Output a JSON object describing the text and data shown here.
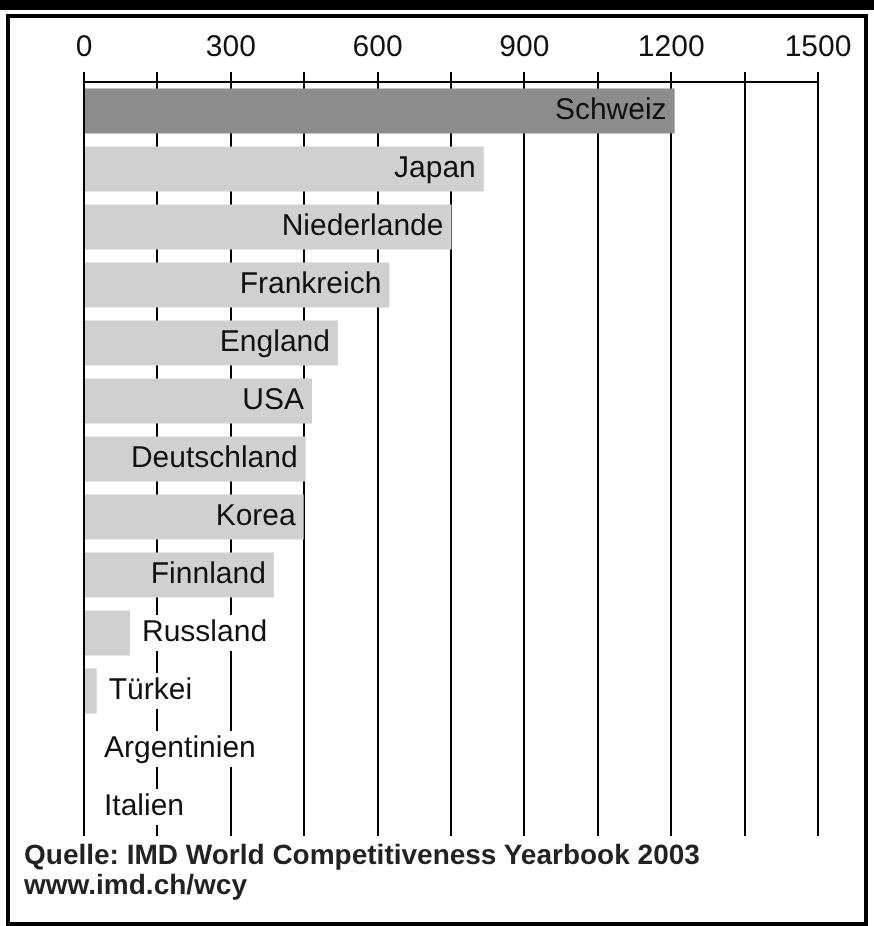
{
  "chart_data": {
    "type": "bar",
    "orientation": "horizontal",
    "categories": [
      "Schweiz",
      "Japan",
      "Niederlande",
      "Frankreich",
      "England",
      "USA",
      "Deutschland",
      "Korea",
      "Finnland",
      "Russland",
      "Türkei",
      "Argentinien",
      "Italien"
    ],
    "values": [
      1207,
      817,
      751,
      624,
      519,
      466,
      453,
      449,
      388,
      94,
      26,
      0,
      0
    ],
    "colors": [
      "#8c8c8c",
      "#d0d0d0",
      "#d0d0d0",
      "#d0d0d0",
      "#d0d0d0",
      "#d0d0d0",
      "#d0d0d0",
      "#d0d0d0",
      "#d0d0d0",
      "#d0d0d0",
      "#d0d0d0",
      "#d0d0d0",
      "#d0d0d0"
    ],
    "xlim": [
      0,
      1500
    ],
    "xticks": [
      0,
      {
        "value": 150,
        "label": null
      },
      300,
      {
        "value": 450,
        "label": null
      },
      600,
      {
        "value": 750,
        "label": null
      },
      900,
      {
        "value": 1050,
        "label": null
      },
      1200,
      {
        "value": 1350,
        "label": null
      },
      1500
    ],
    "grid": "x",
    "tick_labels": "x",
    "legend": false,
    "annotations": [
      "Quelle: IMD World Competitiveness Yearbook 2003",
      "www.imd.ch/wcy"
    ]
  }
}
